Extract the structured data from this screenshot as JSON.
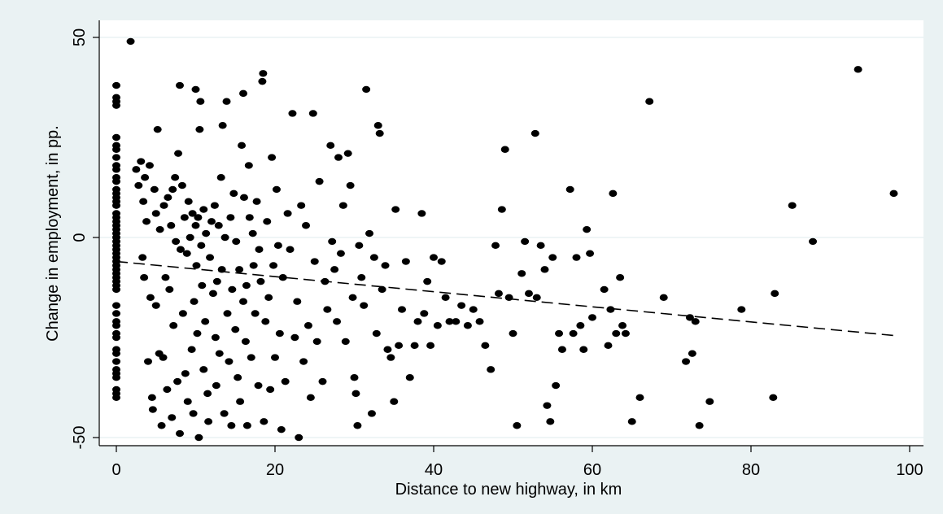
{
  "chart_data": {
    "type": "scatter",
    "xlabel": "Distance to new highway, in km",
    "ylabel": "Change in employment, in pp.",
    "xlim": [
      -3,
      102
    ],
    "ylim": [
      -51,
      51
    ],
    "x_ticks": [
      "0",
      "20",
      "40",
      "60",
      "80",
      "100"
    ],
    "y_ticks": [
      "-50",
      "0",
      "50"
    ],
    "grid": "horizontal at y ticks",
    "legend": "none",
    "fit_line": {
      "style": "dashed",
      "x": [
        0,
        98
      ],
      "y": [
        -6,
        -24.5
      ]
    },
    "marker_color": "#000000",
    "points": [
      [
        0,
        38
      ],
      [
        0,
        35
      ],
      [
        0,
        34
      ],
      [
        0,
        33
      ],
      [
        0,
        25
      ],
      [
        0,
        23
      ],
      [
        0,
        22
      ],
      [
        0,
        20
      ],
      [
        0,
        18
      ],
      [
        0,
        17
      ],
      [
        0,
        15
      ],
      [
        0,
        14
      ],
      [
        0,
        12
      ],
      [
        0,
        11
      ],
      [
        0,
        10
      ],
      [
        0,
        9
      ],
      [
        0,
        8
      ],
      [
        0,
        6
      ],
      [
        0,
        5
      ],
      [
        0,
        4
      ],
      [
        0,
        3
      ],
      [
        0,
        2
      ],
      [
        0,
        1
      ],
      [
        0,
        0
      ],
      [
        0,
        -1
      ],
      [
        0,
        -2
      ],
      [
        0,
        -3
      ],
      [
        0,
        -4
      ],
      [
        0,
        -5
      ],
      [
        0,
        -6
      ],
      [
        0,
        -7
      ],
      [
        0,
        -8
      ],
      [
        0,
        -9
      ],
      [
        0,
        -10
      ],
      [
        0,
        -11
      ],
      [
        0,
        -12
      ],
      [
        0,
        -13
      ],
      [
        0,
        -17
      ],
      [
        0,
        -19
      ],
      [
        0,
        -21
      ],
      [
        0,
        -22
      ],
      [
        0,
        -24
      ],
      [
        0,
        -25
      ],
      [
        0,
        -28
      ],
      [
        0,
        -29
      ],
      [
        0,
        -31
      ],
      [
        0,
        -33
      ],
      [
        0,
        -34
      ],
      [
        0,
        -35
      ],
      [
        0,
        -38
      ],
      [
        0,
        -39
      ],
      [
        0,
        -40
      ],
      [
        1.8,
        49
      ],
      [
        2.5,
        17
      ],
      [
        2.8,
        13
      ],
      [
        3.1,
        19
      ],
      [
        3.3,
        -5
      ],
      [
        3.4,
        9
      ],
      [
        3.5,
        -10
      ],
      [
        3.6,
        15
      ],
      [
        3.8,
        4
      ],
      [
        4,
        -31
      ],
      [
        4.2,
        18
      ],
      [
        4.3,
        -15
      ],
      [
        4.5,
        -40
      ],
      [
        4.6,
        -43
      ],
      [
        4.8,
        12
      ],
      [
        5,
        -17
      ],
      [
        5,
        6
      ],
      [
        5.2,
        27
      ],
      [
        5.4,
        -29
      ],
      [
        5.5,
        2
      ],
      [
        5.7,
        -47
      ],
      [
        5.9,
        -30
      ],
      [
        6,
        8
      ],
      [
        6.2,
        -10
      ],
      [
        6.4,
        -38
      ],
      [
        6.5,
        10
      ],
      [
        6.7,
        -13
      ],
      [
        6.9,
        3
      ],
      [
        7,
        -45
      ],
      [
        7.1,
        12
      ],
      [
        7.2,
        -22
      ],
      [
        7.4,
        15
      ],
      [
        7.5,
        -1
      ],
      [
        7.7,
        -36
      ],
      [
        7.8,
        21
      ],
      [
        8,
        -49
      ],
      [
        8,
        38
      ],
      [
        8.1,
        -3
      ],
      [
        8.3,
        13
      ],
      [
        8.4,
        -19
      ],
      [
        8.6,
        5
      ],
      [
        8.7,
        -34
      ],
      [
        8.9,
        -4
      ],
      [
        9,
        -41
      ],
      [
        9.1,
        9
      ],
      [
        9.3,
        0
      ],
      [
        9.5,
        -28
      ],
      [
        9.6,
        6
      ],
      [
        9.7,
        -44
      ],
      [
        9.8,
        -16
      ],
      [
        10,
        3
      ],
      [
        10,
        37
      ],
      [
        10.1,
        -7
      ],
      [
        10.2,
        -24
      ],
      [
        10.3,
        5
      ],
      [
        10.4,
        -50
      ],
      [
        10.5,
        27
      ],
      [
        10.6,
        34
      ],
      [
        10.7,
        -2
      ],
      [
        10.8,
        -12
      ],
      [
        11,
        7
      ],
      [
        11,
        -33
      ],
      [
        11.2,
        -21
      ],
      [
        11.3,
        1
      ],
      [
        11.5,
        -39
      ],
      [
        11.6,
        -46
      ],
      [
        11.8,
        -5
      ],
      [
        12,
        4
      ],
      [
        12.2,
        -14
      ],
      [
        12.4,
        8
      ],
      [
        12.5,
        -25
      ],
      [
        12.6,
        -37
      ],
      [
        12.7,
        -11
      ],
      [
        12.9,
        3
      ],
      [
        13,
        -29
      ],
      [
        13.2,
        15
      ],
      [
        13.3,
        -8
      ],
      [
        13.4,
        28
      ],
      [
        13.6,
        -44
      ],
      [
        13.7,
        0
      ],
      [
        13.9,
        34
      ],
      [
        14,
        -19
      ],
      [
        14.2,
        -31
      ],
      [
        14.4,
        5
      ],
      [
        14.5,
        -47
      ],
      [
        14.6,
        -13
      ],
      [
        14.8,
        11
      ],
      [
        15,
        -23
      ],
      [
        15.1,
        -1
      ],
      [
        15.3,
        -35
      ],
      [
        15.5,
        -8
      ],
      [
        15.6,
        -41
      ],
      [
        15.8,
        23
      ],
      [
        16,
        36
      ],
      [
        16,
        -16
      ],
      [
        16.1,
        10
      ],
      [
        16.3,
        -26
      ],
      [
        16.4,
        -12
      ],
      [
        16.5,
        -47
      ],
      [
        16.7,
        18
      ],
      [
        16.8,
        5
      ],
      [
        17,
        -30
      ],
      [
        17.2,
        1
      ],
      [
        17.3,
        -7
      ],
      [
        17.5,
        -19
      ],
      [
        17.7,
        9
      ],
      [
        17.9,
        -37
      ],
      [
        18,
        -3
      ],
      [
        18.2,
        -11
      ],
      [
        18.4,
        39
      ],
      [
        18.5,
        41
      ],
      [
        18.6,
        -46
      ],
      [
        18.8,
        -21
      ],
      [
        19,
        4
      ],
      [
        19.2,
        -15
      ],
      [
        19.4,
        -38
      ],
      [
        19.6,
        20
      ],
      [
        19.8,
        -7
      ],
      [
        20,
        -30
      ],
      [
        20.2,
        12
      ],
      [
        20.4,
        -2
      ],
      [
        20.6,
        -24
      ],
      [
        20.8,
        -48
      ],
      [
        21,
        -10
      ],
      [
        21.3,
        -36
      ],
      [
        21.6,
        6
      ],
      [
        21.9,
        -3
      ],
      [
        22.2,
        31
      ],
      [
        22.5,
        -25
      ],
      [
        22.8,
        -16
      ],
      [
        23,
        -50
      ],
      [
        23.3,
        8
      ],
      [
        23.6,
        -31
      ],
      [
        23.9,
        3
      ],
      [
        24.2,
        -22
      ],
      [
        24.5,
        -40
      ],
      [
        24.8,
        31
      ],
      [
        25,
        -6
      ],
      [
        25.3,
        -26
      ],
      [
        25.6,
        14
      ],
      [
        26,
        -36
      ],
      [
        26.3,
        -11
      ],
      [
        26.6,
        -18
      ],
      [
        27,
        23
      ],
      [
        27.2,
        -1
      ],
      [
        27.5,
        -8
      ],
      [
        27.8,
        -21
      ],
      [
        28,
        20
      ],
      [
        28.3,
        -4
      ],
      [
        28.6,
        8
      ],
      [
        28.9,
        -26
      ],
      [
        29.2,
        21
      ],
      [
        29.5,
        13
      ],
      [
        29.8,
        -15
      ],
      [
        30,
        -35
      ],
      [
        30.2,
        -39
      ],
      [
        30.4,
        -47
      ],
      [
        30.6,
        -2
      ],
      [
        30.9,
        -10
      ],
      [
        31.2,
        -17
      ],
      [
        31.5,
        37
      ],
      [
        31.9,
        1
      ],
      [
        32.2,
        -44
      ],
      [
        32.5,
        -5
      ],
      [
        32.8,
        -24
      ],
      [
        33,
        28
      ],
      [
        33.2,
        26
      ],
      [
        33.5,
        -13
      ],
      [
        33.9,
        -7
      ],
      [
        34.2,
        -28
      ],
      [
        34.6,
        -30
      ],
      [
        35,
        -41
      ],
      [
        35.2,
        7
      ],
      [
        35.6,
        -27
      ],
      [
        36,
        -18
      ],
      [
        36.5,
        -6
      ],
      [
        37,
        -35
      ],
      [
        37.6,
        -27
      ],
      [
        38,
        -21
      ],
      [
        38.5,
        6
      ],
      [
        38.8,
        -19
      ],
      [
        39.2,
        -11
      ],
      [
        39.6,
        -27
      ],
      [
        40,
        -5
      ],
      [
        40.5,
        -22
      ],
      [
        41,
        -6
      ],
      [
        41.5,
        -15
      ],
      [
        42,
        -21
      ],
      [
        42.8,
        -21
      ],
      [
        43.5,
        -17
      ],
      [
        44.3,
        -22
      ],
      [
        45,
        -18
      ],
      [
        45.8,
        -21
      ],
      [
        46.5,
        -27
      ],
      [
        47.2,
        -33
      ],
      [
        47.8,
        -2
      ],
      [
        48.2,
        -14
      ],
      [
        48.6,
        7
      ],
      [
        49,
        22
      ],
      [
        49.5,
        -15
      ],
      [
        50,
        -24
      ],
      [
        50.5,
        -47
      ],
      [
        51.1,
        -9
      ],
      [
        51.5,
        -1
      ],
      [
        52,
        -14
      ],
      [
        52.8,
        26
      ],
      [
        53,
        -15
      ],
      [
        53.5,
        -2
      ],
      [
        54,
        -8
      ],
      [
        54.3,
        -42
      ],
      [
        54.7,
        -46
      ],
      [
        55,
        -5
      ],
      [
        55.4,
        -37
      ],
      [
        55.8,
        -24
      ],
      [
        56.2,
        -28
      ],
      [
        57.2,
        12
      ],
      [
        57.6,
        -24
      ],
      [
        58,
        -5
      ],
      [
        58.5,
        -22
      ],
      [
        58.9,
        -28
      ],
      [
        59.3,
        2
      ],
      [
        59.7,
        -4
      ],
      [
        60,
        -20
      ],
      [
        61.5,
        -13
      ],
      [
        62,
        -27
      ],
      [
        62.3,
        -18
      ],
      [
        62.6,
        11
      ],
      [
        63,
        -24
      ],
      [
        63.5,
        -10
      ],
      [
        63.8,
        -22
      ],
      [
        64.2,
        -24
      ],
      [
        65,
        -46
      ],
      [
        66,
        -40
      ],
      [
        67.2,
        34
      ],
      [
        69,
        -15
      ],
      [
        71.8,
        -31
      ],
      [
        72.3,
        -20
      ],
      [
        72.6,
        -29
      ],
      [
        73,
        -21
      ],
      [
        73.5,
        -47
      ],
      [
        74.8,
        -41
      ],
      [
        78.8,
        -18
      ],
      [
        82.8,
        -40
      ],
      [
        83,
        -14
      ],
      [
        85.2,
        8
      ],
      [
        87.8,
        -1
      ],
      [
        93.5,
        42
      ],
      [
        98,
        11
      ]
    ]
  }
}
